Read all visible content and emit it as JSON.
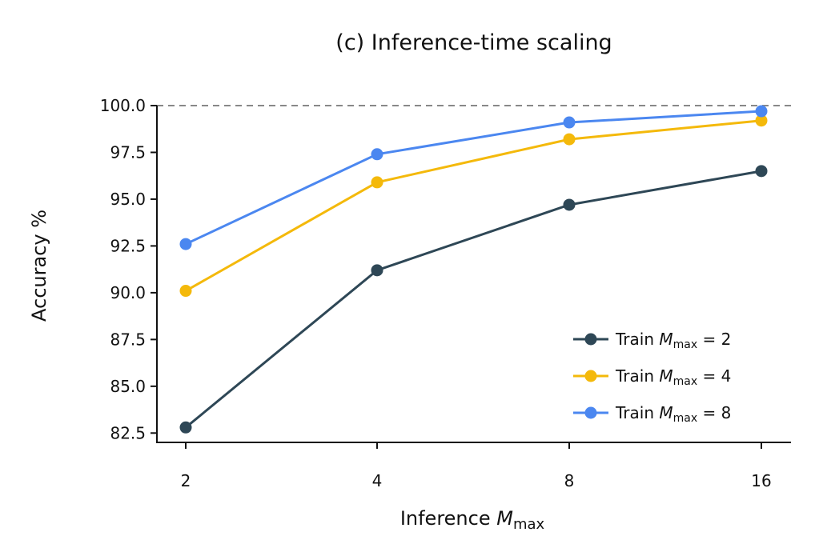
{
  "chart_data": {
    "type": "line",
    "title": "(c) Inference-time scaling",
    "xlabel": {
      "text": "Inference",
      "var": "M",
      "sub": "max"
    },
    "ylabel": "Accuracy %",
    "x": [
      "2",
      "4",
      "8",
      "16"
    ],
    "ylim": [
      82.0,
      100.0
    ],
    "yticks": [
      "82.5",
      "85.0",
      "87.5",
      "90.0",
      "92.5",
      "95.0",
      "97.5",
      "100.0"
    ],
    "reference_line": {
      "y": 100.0,
      "style": "dashed",
      "color": "#888888"
    },
    "legend_position": "bottom-right",
    "series": [
      {
        "prefix": "Train",
        "var": "M",
        "sub": "max",
        "suffix": "= 2",
        "color": "#2e4756",
        "values": [
          82.8,
          91.2,
          94.7,
          96.5
        ]
      },
      {
        "prefix": "Train",
        "var": "M",
        "sub": "max",
        "suffix": "= 4",
        "color": "#f4b90b",
        "values": [
          90.1,
          95.9,
          98.2,
          99.2
        ]
      },
      {
        "prefix": "Train",
        "var": "M",
        "sub": "max",
        "suffix": "= 8",
        "color": "#4b87f0",
        "values": [
          92.6,
          97.4,
          99.1,
          99.7
        ]
      }
    ],
    "grid": false
  }
}
